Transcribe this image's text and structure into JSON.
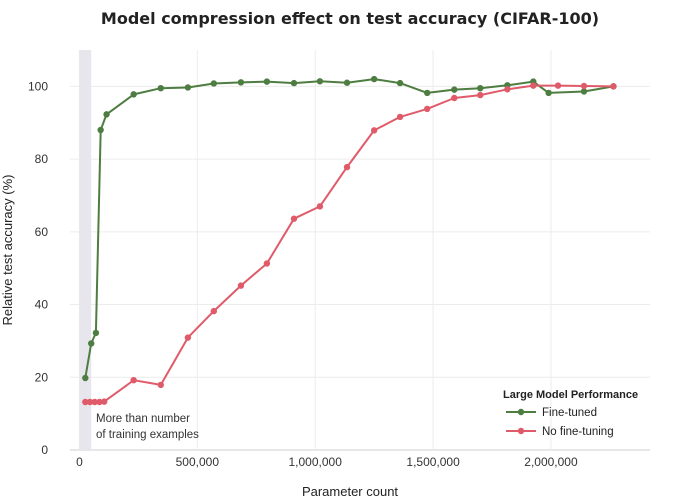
{
  "chart_data": {
    "type": "line",
    "title": "Model compression effect on test accuracy (CIFAR-100)",
    "xlabel": "Parameter count",
    "ylabel": "Relative test accuracy (%)",
    "xlim": [
      -40000,
      2420000
    ],
    "ylim": [
      0,
      110
    ],
    "xticks": [
      0,
      500000,
      1000000,
      1500000,
      2000000
    ],
    "xtick_labels": [
      "0",
      "500,000",
      "1,000,000",
      "1,500,000",
      "2,000,000"
    ],
    "yticks": [
      0,
      20,
      40,
      60,
      80,
      100
    ],
    "ytick_labels": [
      "0",
      "20",
      "40",
      "60",
      "80",
      "100"
    ],
    "grid": true,
    "legend": {
      "title": "Large Model Performance",
      "placement": "bottom-right"
    },
    "shaded_region": {
      "x": [
        0,
        50000
      ],
      "color": "#e6e6ec",
      "annotation": [
        "More than number",
        "of training examples"
      ]
    },
    "series": [
      {
        "name": "Fine-tuned",
        "color": "#4e7d41",
        "points": [
          [
            25000,
            19.8
          ],
          [
            50000,
            29.3
          ],
          [
            70000,
            32.2
          ],
          [
            90000,
            88.0
          ],
          [
            115000,
            92.3
          ],
          [
            230000,
            97.8
          ],
          [
            345000,
            99.5
          ],
          [
            460000,
            99.7
          ],
          [
            570000,
            100.8
          ],
          [
            685000,
            101.1
          ],
          [
            795000,
            101.3
          ],
          [
            910000,
            100.9
          ],
          [
            1020000,
            101.4
          ],
          [
            1135000,
            101.0
          ],
          [
            1250000,
            102.0
          ],
          [
            1360000,
            100.9
          ],
          [
            1475000,
            98.2
          ],
          [
            1590000,
            99.1
          ],
          [
            1700000,
            99.5
          ],
          [
            1815000,
            100.3
          ],
          [
            1925000,
            101.3
          ],
          [
            1990000,
            98.2
          ],
          [
            2140000,
            98.6
          ],
          [
            2265000,
            100.0
          ]
        ]
      },
      {
        "name": "No fine-tuning",
        "color": "#e05b6a",
        "points": [
          [
            25000,
            13.2
          ],
          [
            45000,
            13.2
          ],
          [
            65000,
            13.2
          ],
          [
            85000,
            13.2
          ],
          [
            105000,
            13.3
          ],
          [
            230000,
            19.2
          ],
          [
            345000,
            17.9
          ],
          [
            460000,
            30.9
          ],
          [
            570000,
            38.2
          ],
          [
            685000,
            45.2
          ],
          [
            795000,
            51.3
          ],
          [
            910000,
            63.6
          ],
          [
            1020000,
            67.0
          ],
          [
            1135000,
            77.8
          ],
          [
            1250000,
            87.9
          ],
          [
            1360000,
            91.6
          ],
          [
            1475000,
            93.8
          ],
          [
            1590000,
            96.8
          ],
          [
            1700000,
            97.6
          ],
          [
            1815000,
            99.2
          ],
          [
            1925000,
            100.2
          ],
          [
            2030000,
            100.2
          ],
          [
            2140000,
            100.1
          ],
          [
            2265000,
            100.0
          ]
        ]
      }
    ]
  }
}
